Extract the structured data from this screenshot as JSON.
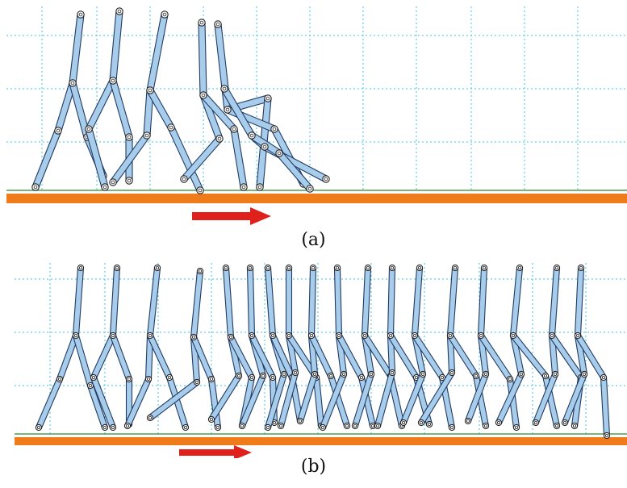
{
  "figure": {
    "panels": [
      {
        "id": "a",
        "caption": "(a)"
      },
      {
        "id": "b",
        "caption": "(b)"
      }
    ],
    "colors": {
      "ground": "#f07b1a",
      "grid": "#3ec6e6",
      "segment_fill": "#a8cdea",
      "segment_outline": "#1f3a66",
      "arrow": "#e0201a"
    }
  }
}
